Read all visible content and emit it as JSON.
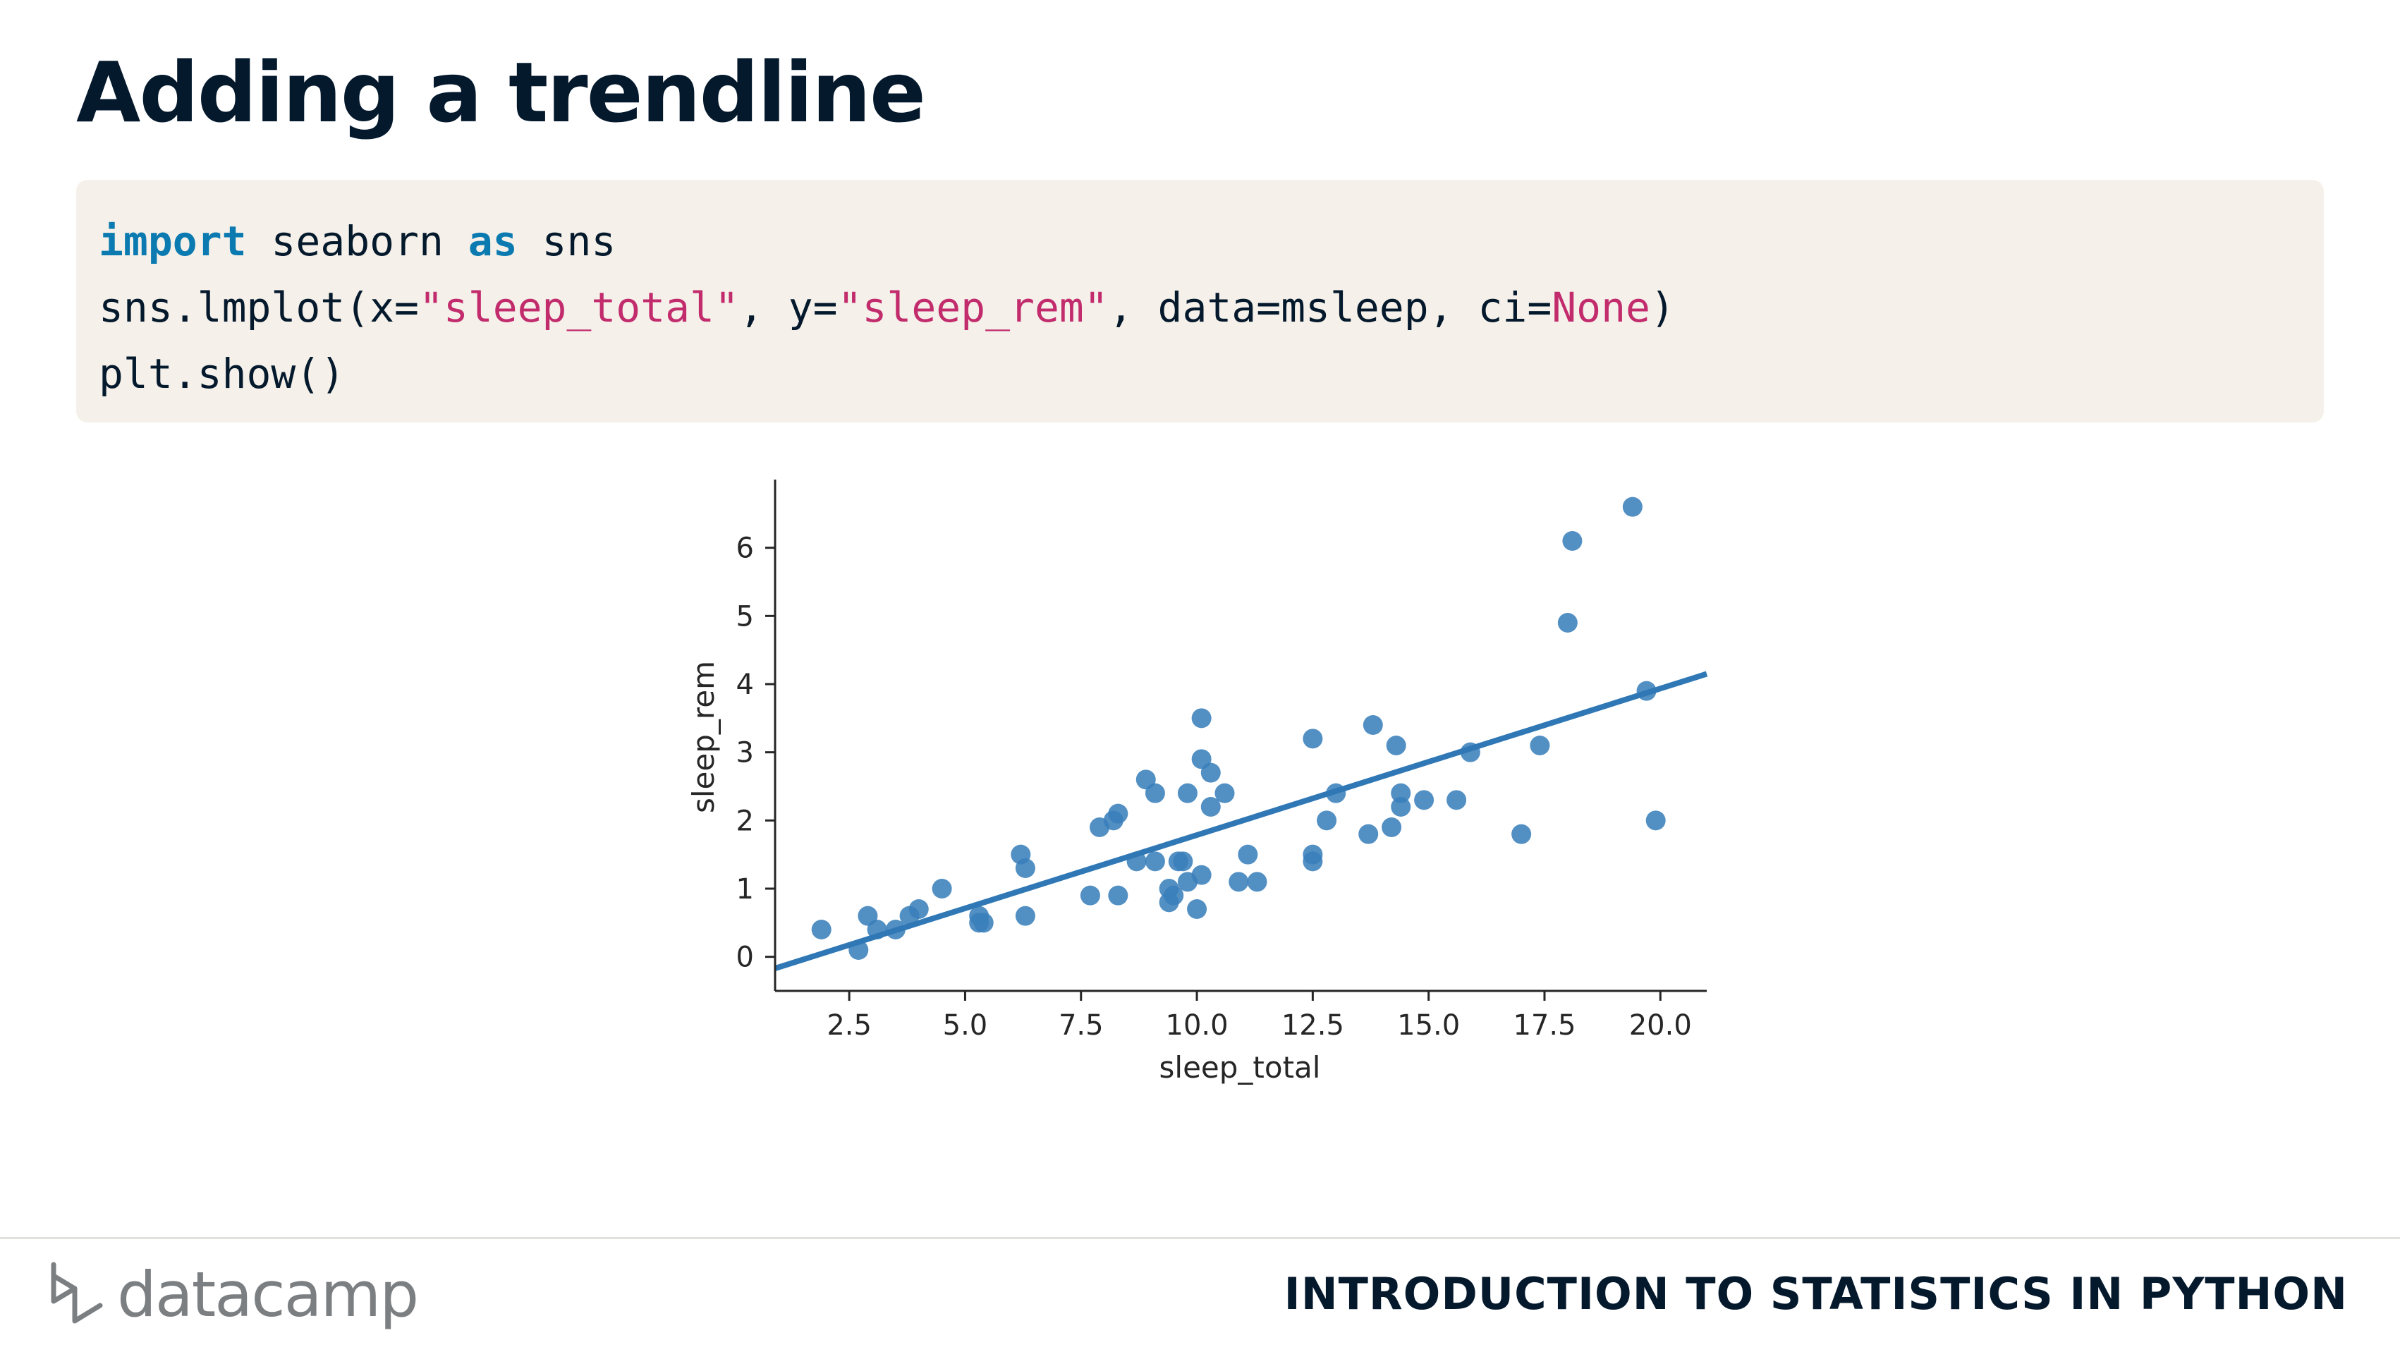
{
  "slide": {
    "title": "Adding a trendline",
    "course_title": "INTRODUCTION TO STATISTICS IN PYTHON",
    "brand": "datacamp"
  },
  "code": {
    "line1": {
      "kw1": "import",
      "t1": " seaborn ",
      "kw2": "as",
      "t2": " sns"
    },
    "line2": {
      "t1": "sns.lmplot(x=",
      "s1": "\"sleep_total\"",
      "t2": ", y=",
      "s2": "\"sleep_rem\"",
      "t3": ", data=msleep, ci=",
      "n1": "None",
      "t4": ")"
    },
    "line3": {
      "t1": "plt.show()"
    }
  },
  "colors": {
    "point": "#3a7fbb",
    "line": "#2f78b5",
    "keyword": "#0b7ab0",
    "string": "#c22c6d",
    "code_bg": "#f5f1ea"
  },
  "chart_data": {
    "type": "scatter",
    "xlabel": "sleep_total",
    "ylabel": "sleep_rem",
    "xlim": [
      0.9,
      21.0
    ],
    "ylim": [
      -0.5,
      7.0
    ],
    "xticks": [
      "2.5",
      "5.0",
      "7.5",
      "10.0",
      "12.5",
      "15.0",
      "17.5",
      "20.0"
    ],
    "xtick_values": [
      2.5,
      5.0,
      7.5,
      10.0,
      12.5,
      15.0,
      17.5,
      20.0
    ],
    "yticks": [
      "0",
      "1",
      "2",
      "3",
      "4",
      "5",
      "6"
    ],
    "ytick_values": [
      0,
      1,
      2,
      3,
      4,
      5,
      6
    ],
    "trendline": {
      "x": [
        0.9,
        21.0
      ],
      "y": [
        -0.17,
        4.15
      ]
    },
    "points": [
      [
        1.9,
        0.4
      ],
      [
        2.7,
        0.1
      ],
      [
        2.9,
        0.6
      ],
      [
        3.1,
        0.4
      ],
      [
        3.5,
        0.4
      ],
      [
        3.8,
        0.6
      ],
      [
        4.0,
        0.7
      ],
      [
        4.5,
        1.0
      ],
      [
        5.3,
        0.6
      ],
      [
        5.3,
        0.5
      ],
      [
        5.4,
        0.5
      ],
      [
        6.2,
        1.5
      ],
      [
        6.3,
        1.3
      ],
      [
        6.3,
        0.6
      ],
      [
        7.7,
        0.9
      ],
      [
        7.9,
        1.9
      ],
      [
        8.2,
        2.0
      ],
      [
        8.3,
        2.1
      ],
      [
        8.3,
        0.9
      ],
      [
        8.7,
        1.4
      ],
      [
        8.9,
        2.6
      ],
      [
        9.1,
        2.4
      ],
      [
        9.1,
        1.4
      ],
      [
        9.4,
        1.0
      ],
      [
        9.4,
        0.8
      ],
      [
        9.5,
        0.9
      ],
      [
        9.6,
        1.4
      ],
      [
        9.7,
        1.4
      ],
      [
        9.8,
        2.4
      ],
      [
        9.8,
        1.1
      ],
      [
        10.0,
        0.7
      ],
      [
        10.1,
        3.5
      ],
      [
        10.1,
        2.9
      ],
      [
        10.1,
        1.2
      ],
      [
        10.3,
        2.7
      ],
      [
        10.3,
        2.2
      ],
      [
        10.6,
        2.4
      ],
      [
        10.9,
        1.1
      ],
      [
        11.1,
        1.5
      ],
      [
        11.3,
        1.1
      ],
      [
        12.5,
        3.2
      ],
      [
        12.5,
        1.5
      ],
      [
        12.5,
        1.4
      ],
      [
        12.8,
        2.0
      ],
      [
        13.0,
        2.4
      ],
      [
        13.7,
        1.8
      ],
      [
        13.8,
        3.4
      ],
      [
        14.2,
        1.9
      ],
      [
        14.3,
        3.1
      ],
      [
        14.4,
        2.4
      ],
      [
        14.4,
        2.2
      ],
      [
        14.9,
        2.3
      ],
      [
        15.6,
        2.3
      ],
      [
        15.9,
        3.0
      ],
      [
        17.0,
        1.8
      ],
      [
        17.4,
        3.1
      ],
      [
        18.0,
        4.9
      ],
      [
        18.1,
        6.1
      ],
      [
        19.4,
        6.6
      ],
      [
        19.7,
        3.9
      ],
      [
        19.9,
        2.0
      ]
    ]
  }
}
